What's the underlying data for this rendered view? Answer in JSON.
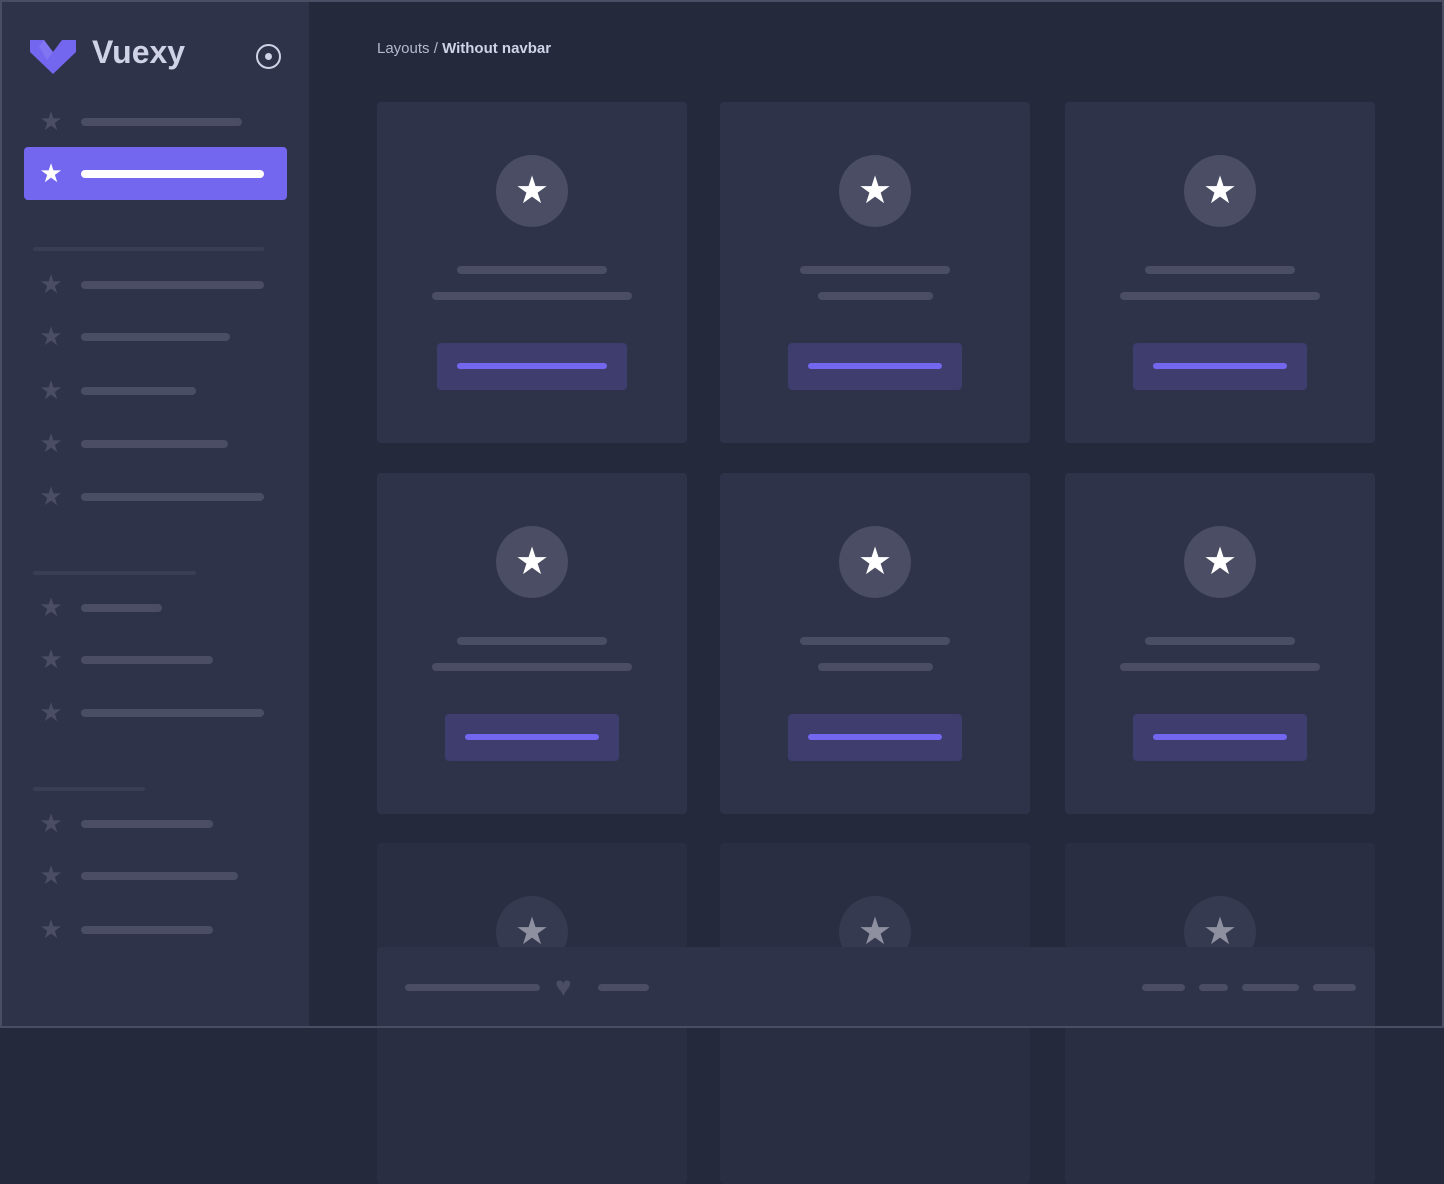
{
  "brand": {
    "name": "Vuexy",
    "logo_color": "#7367f0"
  },
  "sidebar": {
    "toggle_icon": "radio-circle-icon",
    "item_icon": "star-icon",
    "active_index": 1,
    "accent": "#7367f0"
  },
  "breadcrumb": {
    "parent": "Layouts",
    "separator": " / ",
    "current": "Without navbar"
  },
  "cards": {
    "icon": "star-icon",
    "count": 9
  },
  "footer": {
    "icon": "heart-icon"
  },
  "colors": {
    "background": "#25293c",
    "surface": "#2f3349",
    "placeholder": "#4a4d63",
    "button": "#3e3d6e"
  }
}
